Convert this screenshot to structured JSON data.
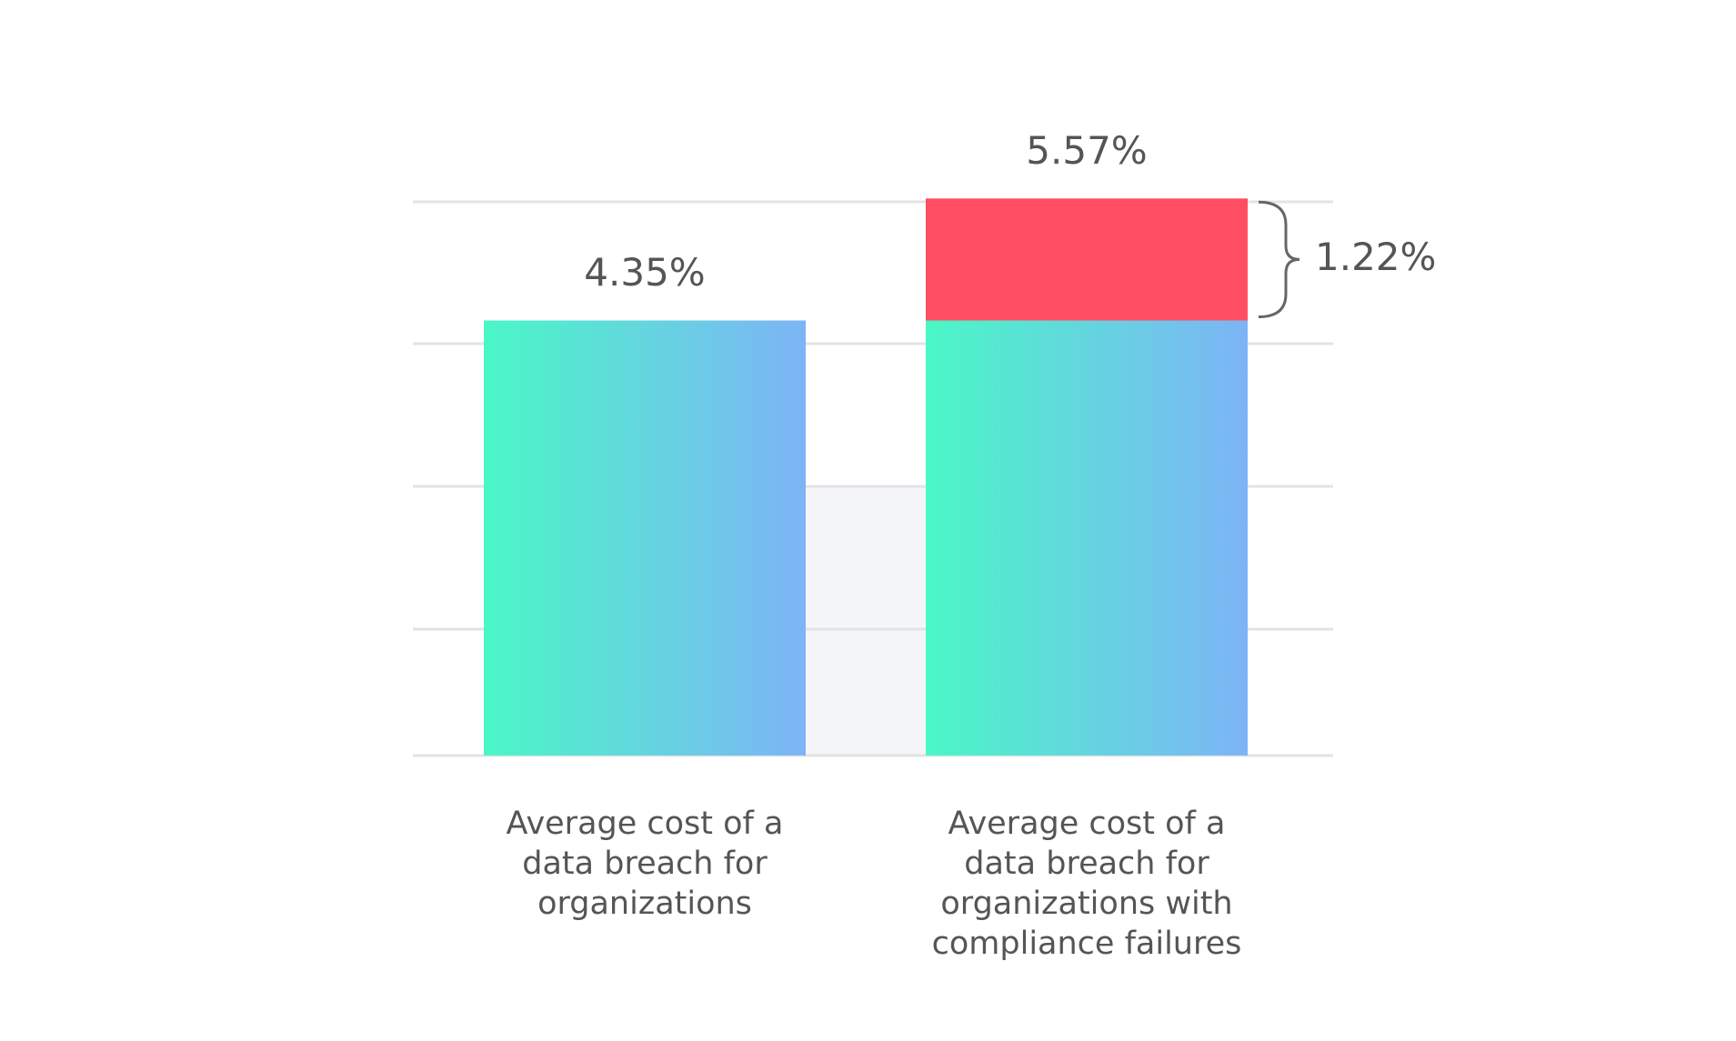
{
  "chart_data": {
    "type": "bar",
    "stacked": true,
    "categories": [
      "Average cost of a data breach for organizations",
      "Average cost of a data breach for organizations with compliance failures"
    ],
    "series": [
      {
        "gradient": [
          "#4af7c6",
          "#7db4f7"
        ],
        "values": [
          4.35,
          4.35
        ]
      },
      {
        "color": "#ff4d62",
        "values": [
          null,
          1.22
        ],
        "value_labels": [
          null,
          "1.22%"
        ]
      }
    ],
    "totals": [
      4.35,
      5.57
    ],
    "total_labels": [
      "4.35%",
      "5.57%"
    ],
    "ylim": [
      0,
      7
    ]
  }
}
